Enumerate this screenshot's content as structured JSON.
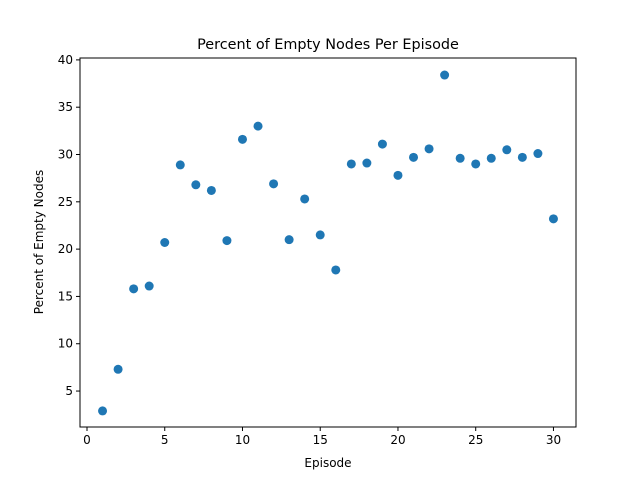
{
  "chart_data": {
    "type": "scatter",
    "title": "Percent of Empty Nodes Per Episode",
    "xlabel": "Episode",
    "ylabel": "Percent of Empty Nodes",
    "xlim": [
      -0.45,
      31.45
    ],
    "ylim": [
      1.2,
      40.2
    ],
    "xticks": [
      0,
      5,
      10,
      15,
      20,
      25,
      30
    ],
    "yticks": [
      5,
      10,
      15,
      20,
      25,
      30,
      35,
      40
    ],
    "grid": false,
    "marker_color": "#1f77b4",
    "points": [
      {
        "x": 1,
        "y": 2.9
      },
      {
        "x": 2,
        "y": 7.3
      },
      {
        "x": 3,
        "y": 15.8
      },
      {
        "x": 4,
        "y": 16.1
      },
      {
        "x": 5,
        "y": 20.7
      },
      {
        "x": 6,
        "y": 28.9
      },
      {
        "x": 7,
        "y": 26.8
      },
      {
        "x": 8,
        "y": 26.2
      },
      {
        "x": 9,
        "y": 20.9
      },
      {
        "x": 10,
        "y": 31.6
      },
      {
        "x": 11,
        "y": 33.0
      },
      {
        "x": 12,
        "y": 26.9
      },
      {
        "x": 13,
        "y": 21.0
      },
      {
        "x": 14,
        "y": 25.3
      },
      {
        "x": 15,
        "y": 21.5
      },
      {
        "x": 16,
        "y": 17.8
      },
      {
        "x": 17,
        "y": 29.0
      },
      {
        "x": 18,
        "y": 29.1
      },
      {
        "x": 19,
        "y": 31.1
      },
      {
        "x": 20,
        "y": 27.8
      },
      {
        "x": 21,
        "y": 29.7
      },
      {
        "x": 22,
        "y": 30.6
      },
      {
        "x": 23,
        "y": 38.4
      },
      {
        "x": 24,
        "y": 29.6
      },
      {
        "x": 25,
        "y": 29.0
      },
      {
        "x": 26,
        "y": 29.6
      },
      {
        "x": 27,
        "y": 30.5
      },
      {
        "x": 28,
        "y": 29.7
      },
      {
        "x": 29,
        "y": 30.1
      },
      {
        "x": 30,
        "y": 23.2
      }
    ]
  }
}
